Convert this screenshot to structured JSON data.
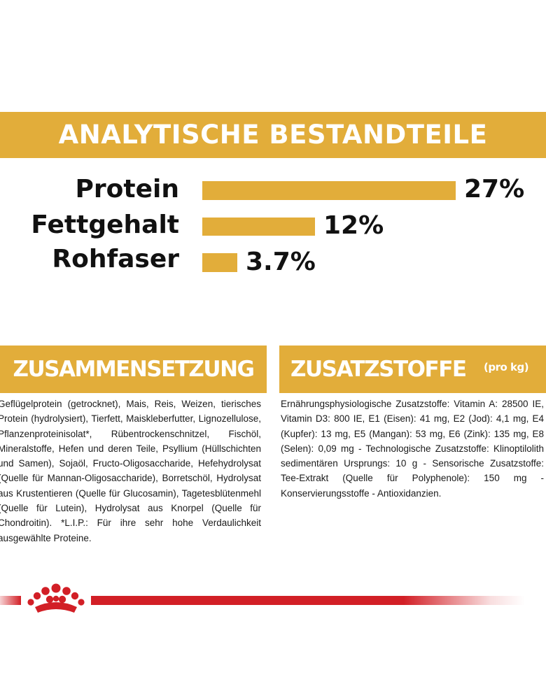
{
  "colors": {
    "band": "#e2ad3a",
    "bar": "#e2ad3a",
    "brand_red": "#d21f26",
    "text": "#111111"
  },
  "analysis": {
    "title": "ANALYTISCHE BESTANDTEILE",
    "rows": [
      {
        "label": "Protein",
        "value": "27%",
        "amount": 27
      },
      {
        "label": "Fettgehalt",
        "value": "12%",
        "amount": 12
      },
      {
        "label": "Rohfaser",
        "value": "3.7%",
        "amount": 3.7
      }
    ]
  },
  "composition": {
    "title": "ZUSAMMENSETZUNG",
    "text": "Geflügelprotein (getrocknet), Mais, Reis, Weizen, tierisches Protein (hydrolysiert), Tierfett, Maiskleberfutter, Lignozellulose, Pflanzenproteinisolat*, Rübentrockenschnitzel, Fischöl, Mineralstoffe, Hefen und deren Teile, Psyllium (Hüllschichten und Samen), Sojaöl, Fructo-Oligosaccharide, Hefehydrolysat (Quelle für Mannan-Oligosaccharide), Borretschöl, Hydrolysat aus Krustentieren (Quelle für Glucosamin), Tagetesblütenmehl (Quelle für Lutein), Hydrolysat aus Knorpel (Quelle für Chondroitin). *L.I.P.: Für ihre sehr hohe Verdaulichkeit ausgewählte Proteine."
  },
  "additives": {
    "title": "ZUSATZSTOFFE",
    "title_suffix": "(pro kg)",
    "text": "Ernährungsphysiologische Zusatzstoffe: Vitamin A: 28500 IE, Vitamin D3: 800 IE, E1 (Eisen): 41 mg, E2 (Jod): 4,1 mg, E4 (Kupfer): 13 mg, E5 (Mangan): 53 mg, E6 (Zink): 135 mg, E8 (Selen): 0,09 mg - Technologische Zusatzstoffe: Klinoptilolith sedimentären Ursprungs: 10 g - Sensorische Zusatzstoffe: Tee-Extrakt (Quelle für Polyphenole): 150 mg - Konservierungsstoffe - Antioxidanzien."
  },
  "footer": {
    "logo_icon": "royal-canin-crown-icon"
  }
}
